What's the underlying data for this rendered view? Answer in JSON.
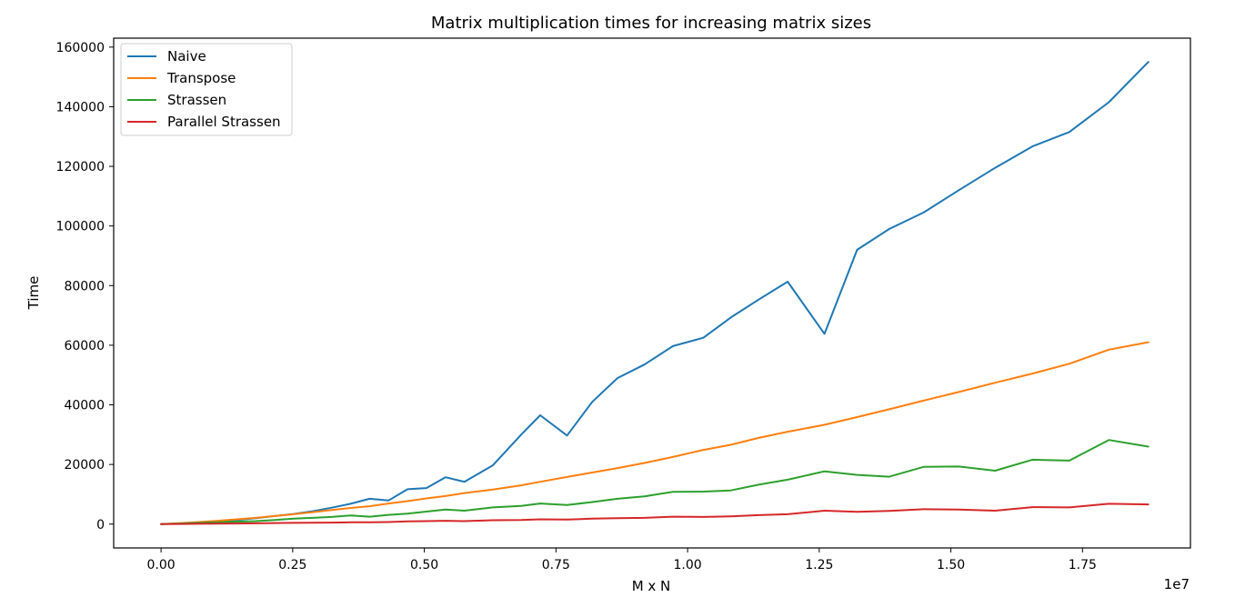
{
  "chart_data": {
    "type": "line",
    "title": "Matrix multiplication times for increasing matrix sizes",
    "xlabel": "M x N",
    "ylabel": "Time",
    "x_offset_label": "1e7",
    "xlim": [
      -0.09,
      1.955
    ],
    "ylim": [
      -8000,
      163000
    ],
    "x_ticks": [
      0.0,
      0.25,
      0.5,
      0.75,
      1.0,
      1.25,
      1.5,
      1.75
    ],
    "x_tick_labels": [
      "0.00",
      "0.25",
      "0.50",
      "0.75",
      "1.00",
      "1.25",
      "1.50",
      "1.75"
    ],
    "y_ticks": [
      0,
      20000,
      40000,
      60000,
      80000,
      100000,
      120000,
      140000,
      160000
    ],
    "y_tick_labels": [
      "0",
      "20000",
      "40000",
      "60000",
      "80000",
      "100000",
      "120000",
      "140000",
      "160000"
    ],
    "grid": false,
    "legend_position": "top-left",
    "series": [
      {
        "name": "Naive",
        "color": "#1f77b4",
        "x": [
          0.0,
          0.036,
          0.072,
          0.108,
          0.144,
          0.18,
          0.216,
          0.252,
          0.288,
          0.324,
          0.36,
          0.396,
          0.432,
          0.468,
          0.504,
          0.54,
          0.576,
          0.63,
          0.684,
          0.72,
          0.771,
          0.819,
          0.867,
          0.918,
          0.972,
          1.03,
          1.082,
          1.135,
          1.19,
          1.26,
          1.322,
          1.383,
          1.448,
          1.515,
          1.584,
          1.655,
          1.725,
          1.8,
          1.875
        ],
        "y": [
          0,
          200,
          500,
          900,
          1400,
          2000,
          2700,
          3400,
          4300,
          5500,
          6800,
          8500,
          7900,
          11700,
          12100,
          15700,
          14200,
          19700,
          30000,
          36500,
          29700,
          41000,
          49000,
          53500,
          59700,
          62500,
          69300,
          75300,
          81300,
          63800,
          92000,
          99000,
          104500,
          112000,
          119500,
          126700,
          131500,
          141500,
          155000
        ]
      },
      {
        "name": "Transpose",
        "color": "#ff7f0e",
        "x": [
          0.0,
          0.036,
          0.072,
          0.108,
          0.144,
          0.18,
          0.216,
          0.252,
          0.288,
          0.324,
          0.36,
          0.396,
          0.432,
          0.468,
          0.504,
          0.54,
          0.576,
          0.63,
          0.684,
          0.72,
          0.771,
          0.819,
          0.867,
          0.918,
          0.972,
          1.03,
          1.082,
          1.135,
          1.19,
          1.26,
          1.322,
          1.383,
          1.448,
          1.515,
          1.584,
          1.655,
          1.725,
          1.8,
          1.875
        ],
        "y": [
          0,
          300,
          700,
          1100,
          1600,
          2100,
          2700,
          3300,
          4000,
          4700,
          5400,
          6000,
          6900,
          7700,
          8600,
          9400,
          10400,
          11600,
          13000,
          14200,
          15800,
          17300,
          18800,
          20500,
          22500,
          24900,
          26600,
          28900,
          31000,
          33300,
          35900,
          38500,
          41400,
          44300,
          47400,
          50500,
          53800,
          58500,
          61000
        ]
      },
      {
        "name": "Strassen",
        "color": "#2ca02c",
        "x": [
          0.0,
          0.036,
          0.072,
          0.108,
          0.144,
          0.18,
          0.216,
          0.252,
          0.288,
          0.324,
          0.36,
          0.396,
          0.432,
          0.468,
          0.504,
          0.54,
          0.576,
          0.63,
          0.684,
          0.72,
          0.771,
          0.819,
          0.867,
          0.918,
          0.972,
          1.03,
          1.082,
          1.135,
          1.19,
          1.26,
          1.322,
          1.383,
          1.448,
          1.515,
          1.584,
          1.655,
          1.725,
          1.8,
          1.875
        ],
        "y": [
          0,
          200,
          400,
          600,
          800,
          1000,
          1400,
          1800,
          2100,
          2400,
          2900,
          2500,
          3100,
          3500,
          4200,
          4900,
          4500,
          5600,
          6100,
          6900,
          6400,
          7400,
          8500,
          9300,
          10800,
          10900,
          11300,
          13200,
          14900,
          17700,
          16500,
          15900,
          19200,
          19300,
          17900,
          21600,
          21300,
          28200,
          26000
        ]
      },
      {
        "name": "Parallel Strassen",
        "color": "#d62728",
        "x": [
          0.0,
          0.036,
          0.072,
          0.108,
          0.144,
          0.18,
          0.216,
          0.252,
          0.288,
          0.324,
          0.36,
          0.396,
          0.432,
          0.468,
          0.504,
          0.54,
          0.576,
          0.63,
          0.684,
          0.72,
          0.771,
          0.819,
          0.867,
          0.918,
          0.972,
          1.03,
          1.082,
          1.135,
          1.19,
          1.26,
          1.322,
          1.383,
          1.448,
          1.515,
          1.584,
          1.655,
          1.725,
          1.8,
          1.875
        ],
        "y": [
          0,
          50,
          100,
          150,
          200,
          250,
          350,
          400,
          450,
          500,
          600,
          600,
          700,
          900,
          1000,
          1100,
          1000,
          1300,
          1400,
          1600,
          1500,
          1800,
          2000,
          2100,
          2500,
          2400,
          2600,
          3000,
          3300,
          4500,
          4100,
          4400,
          5000,
          4900,
          4500,
          5700,
          5600,
          6800,
          6600
        ]
      }
    ]
  }
}
